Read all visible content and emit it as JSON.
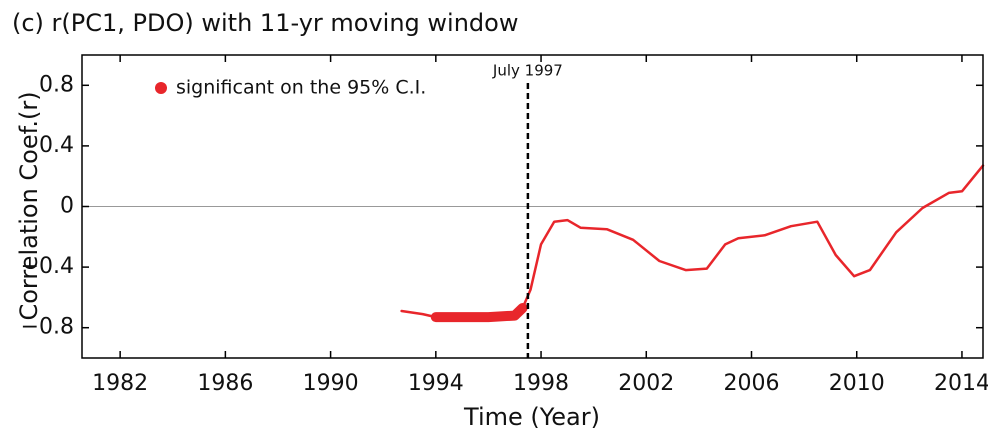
{
  "chart_data": {
    "type": "line",
    "title": "(c) r(PC1, PDO) with 11-yr moving window",
    "xlabel": "Time (Year)",
    "ylabel": "Correlation Coef.(r)",
    "x": [
      1992.7,
      1993.5,
      1994.0,
      1995.0,
      1996.0,
      1997.0,
      1997.3,
      1997.6,
      1998.0,
      1998.5,
      1999.0,
      1999.5,
      2000.5,
      2001.5,
      2002.5,
      2003.5,
      2004.3,
      2005.0,
      2005.5,
      2006.5,
      2007.5,
      2008.5,
      2009.2,
      2009.9,
      2010.5,
      2011.5,
      2012.5,
      2013.5,
      2014.0,
      2014.8
    ],
    "series": [
      {
        "color": "#e8262b",
        "values": [
          -0.69,
          -0.71,
          -0.73,
          -0.73,
          -0.73,
          -0.72,
          -0.67,
          -0.55,
          -0.25,
          -0.1,
          -0.09,
          -0.14,
          -0.15,
          -0.22,
          -0.36,
          -0.42,
          -0.41,
          -0.25,
          -0.21,
          -0.19,
          -0.13,
          -0.1,
          -0.32,
          -0.46,
          -0.42,
          -0.17,
          -0.01,
          0.09,
          0.1,
          0.27
        ]
      },
      {
        "name": "significant on the 95% C.I.",
        "color": "#e8262b",
        "values": [
          null,
          null,
          -0.73,
          -0.73,
          -0.73,
          -0.72,
          -0.67,
          null,
          null,
          null,
          null,
          null,
          null,
          null,
          null,
          null,
          null,
          null,
          null,
          null,
          null,
          null,
          null,
          null,
          null,
          null,
          null,
          null,
          null,
          null
        ]
      }
    ],
    "annotations": [
      {
        "text": "July 1997",
        "x": 1997.5
      }
    ],
    "xlim": [
      1980.55,
      2014.8
    ],
    "xticks": [
      1982,
      1986,
      1990,
      1994,
      1998,
      2002,
      2006,
      2010,
      2014
    ],
    "ylim": [
      -1,
      1
    ],
    "yticks": [
      {
        "value": -0.8,
        "label": "−0.8"
      },
      {
        "value": -0.4,
        "label": "−0.4"
      },
      0,
      0.4,
      0.8
    ],
    "zero_line": true,
    "legend": "upper left"
  }
}
